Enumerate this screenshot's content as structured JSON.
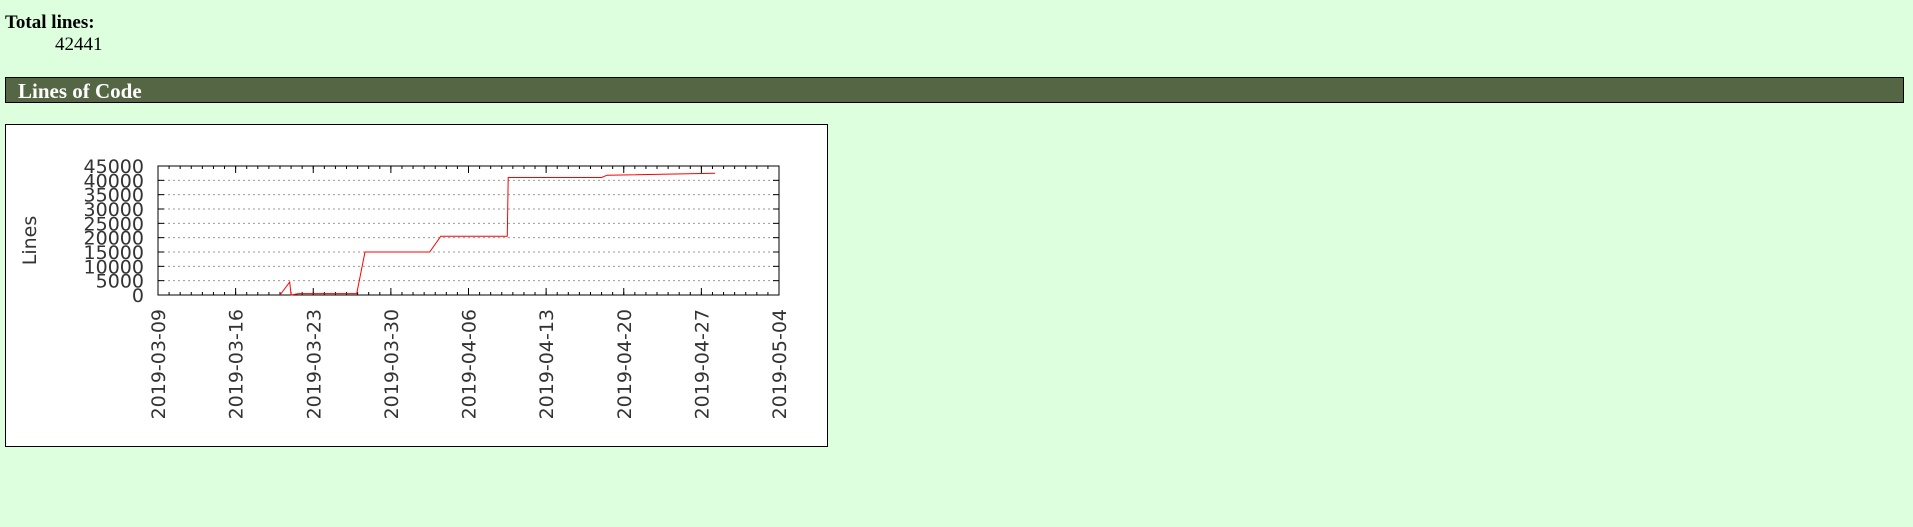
{
  "summary": {
    "total_lines_label": "Total lines:",
    "total_lines_value": "42441"
  },
  "section": {
    "title": "Lines of Code"
  },
  "colors": {
    "page_background": "#ddffdd",
    "header_background": "#556644",
    "series_line": "#ff0000"
  },
  "chart_data": {
    "type": "line",
    "title": "",
    "xlabel": "",
    "ylabel": "Lines",
    "x_type": "date",
    "xlim": [
      "2019-03-09",
      "2019-05-04"
    ],
    "ylim": [
      0,
      45000
    ],
    "x_ticks": [
      "2019-03-09",
      "2019-03-16",
      "2019-03-23",
      "2019-03-30",
      "2019-04-06",
      "2019-04-13",
      "2019-04-20",
      "2019-04-27",
      "2019-05-04"
    ],
    "y_ticks": [
      0,
      5000,
      10000,
      15000,
      20000,
      25000,
      30000,
      35000,
      40000,
      45000
    ],
    "grid": true,
    "legend": "none",
    "series": [
      {
        "points": [
          [
            "2019-03-20T00:00",
            0
          ],
          [
            "2019-03-20T21:00",
            4500
          ],
          [
            "2019-03-21T00:00",
            0
          ],
          [
            "2019-03-21T16:00",
            500
          ],
          [
            "2019-03-26T22:00",
            500
          ],
          [
            "2019-03-27T16:00",
            15000
          ],
          [
            "2019-04-02T12:00",
            15000
          ],
          [
            "2019-04-03T12:00",
            20500
          ],
          [
            "2019-04-09T12:00",
            20500
          ],
          [
            "2019-04-09T14:00",
            41000
          ],
          [
            "2019-04-18T00:00",
            41000
          ],
          [
            "2019-04-18T12:00",
            41800
          ],
          [
            "2019-04-28T06:00",
            42441
          ]
        ]
      }
    ]
  }
}
